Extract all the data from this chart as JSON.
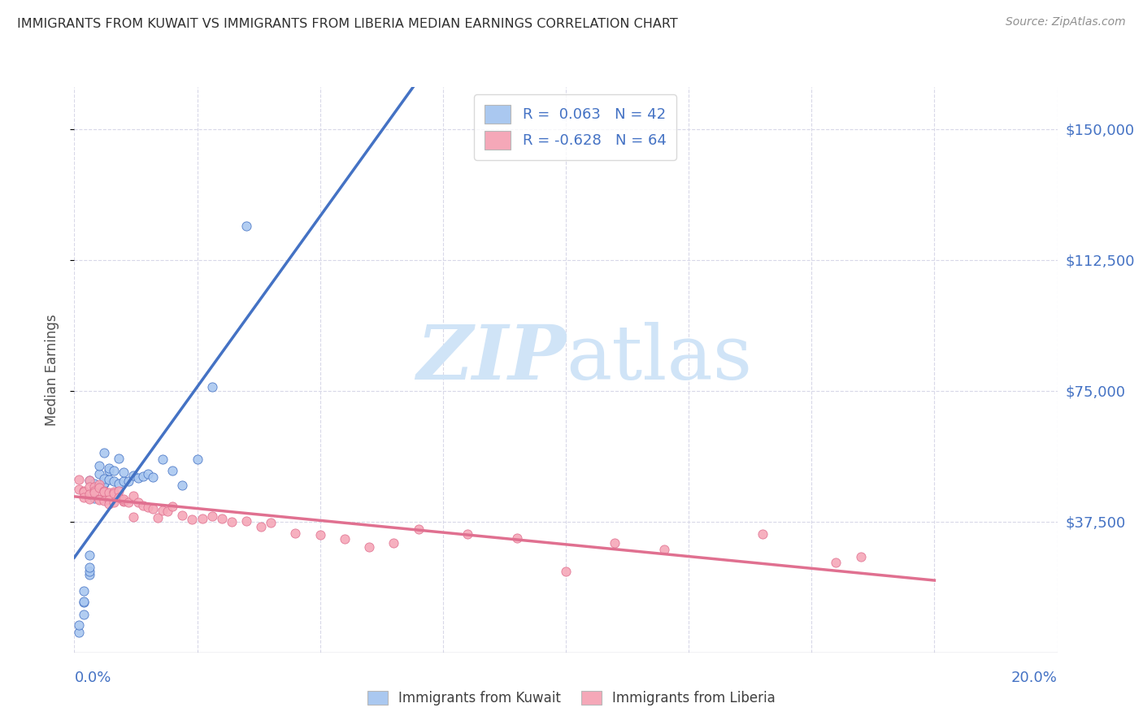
{
  "title": "IMMIGRANTS FROM KUWAIT VS IMMIGRANTS FROM LIBERIA MEDIAN EARNINGS CORRELATION CHART",
  "source": "Source: ZipAtlas.com",
  "ylabel": "Median Earnings",
  "ytick_labels": [
    "$150,000",
    "$112,500",
    "$75,000",
    "$37,500"
  ],
  "ytick_values": [
    150000,
    112500,
    75000,
    37500
  ],
  "ymin": 0,
  "ymax": 162000,
  "xmin": 0.0,
  "xmax": 0.2,
  "kuwait_R": 0.063,
  "kuwait_N": 42,
  "liberia_R": -0.628,
  "liberia_N": 64,
  "kuwait_color": "#aac8f0",
  "liberia_color": "#f5a8b8",
  "kuwait_line_color": "#4472c4",
  "liberia_line_color": "#e07090",
  "dashed_line_color": "#9090c0",
  "background_color": "#ffffff",
  "grid_color": "#d8d8e8",
  "axis_label_color": "#4472c4",
  "title_color": "#303030",
  "watermark_color": "#d0e4f7",
  "legend_box_color_kuwait": "#aac8f0",
  "legend_box_color_liberia": "#f5a8b8"
}
